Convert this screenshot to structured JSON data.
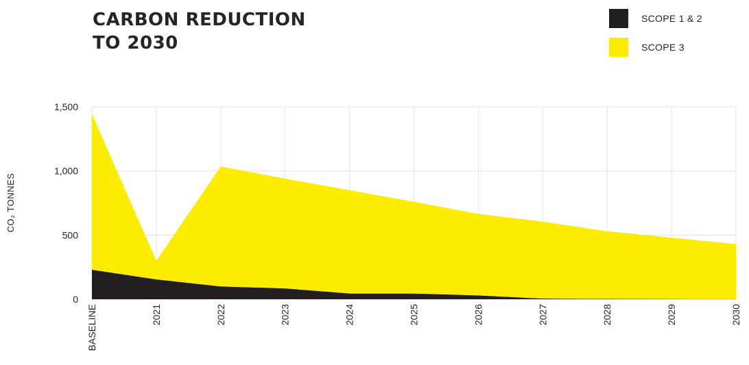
{
  "chart_data": {
    "type": "area",
    "title_lines": [
      "CARBON REDUCTION",
      "TO 2030"
    ],
    "ylabel": "CO₂ TONNES",
    "xlabel": "",
    "categories": [
      "BASELINE",
      "2021",
      "2022",
      "2023",
      "2024",
      "2025",
      "2026",
      "2027",
      "2028",
      "2029",
      "2030"
    ],
    "ylim": [
      0,
      1500
    ],
    "yticks": [
      0,
      500,
      1000,
      1500
    ],
    "ytick_labels": [
      "0",
      "500",
      "1,000",
      "1,500"
    ],
    "grid": true,
    "stacked": true,
    "legend_position": "top-right",
    "series": [
      {
        "name": "SCOPE 1 & 2",
        "color": "#231f20",
        "values": [
          230,
          155,
          100,
          85,
          45,
          45,
          30,
          5,
          3,
          2,
          1
        ]
      },
      {
        "name": "SCOPE 3",
        "color": "#fcec00",
        "values": [
          1215,
          145,
          935,
          855,
          805,
          715,
          635,
          600,
          527,
          478,
          429
        ]
      }
    ]
  }
}
